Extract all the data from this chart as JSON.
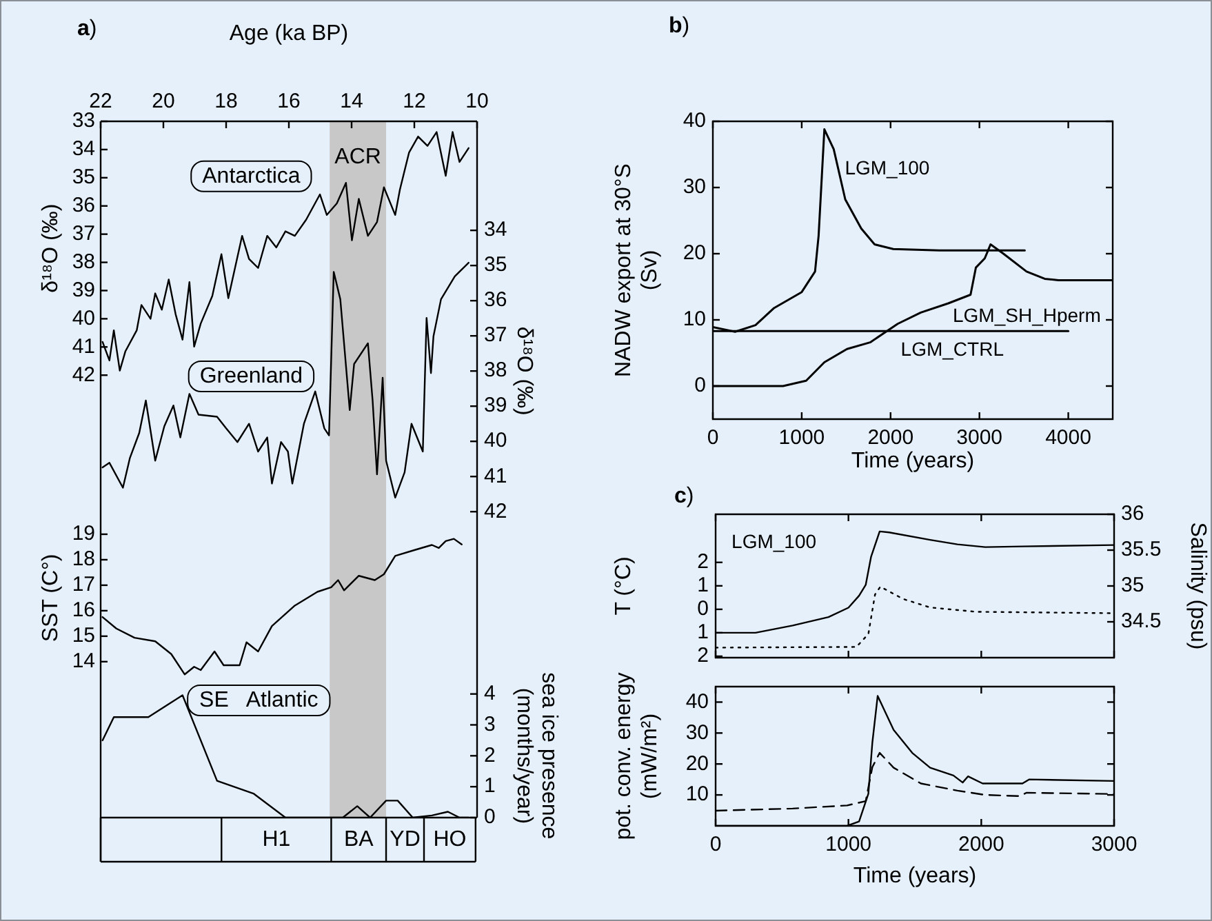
{
  "chart_data": [
    {
      "type": "line",
      "annotations": [
        "a)"
      ],
      "xlabel": "Age (ka BP)",
      "xlim": [
        22,
        10
      ],
      "xticks": [
        22,
        20,
        18,
        16,
        14,
        12,
        10
      ],
      "ylabel": "δ¹⁸O (‰)",
      "ylim": [
        52.7,
        33
      ],
      "yticks": [
        33,
        34,
        35,
        36,
        37,
        38,
        39,
        40,
        41,
        42
      ],
      "y2label": "δ¹⁸O (‰)",
      "y2lim": [
        46.7,
        30.9
      ],
      "y2ticks": [
        34,
        35,
        36,
        37,
        38,
        39,
        40,
        41,
        42
      ],
      "y3label": "SST (C°)",
      "y3lim": [
        13.4,
        35.2
      ],
      "y3ticks": [
        14,
        15,
        16,
        17,
        18,
        19
      ],
      "bands": [
        {
          "axis": "x",
          "from": 14.7,
          "to": 12.9,
          "label": "ACR",
          "color": "#c8c8c8"
        }
      ],
      "grid": false,
      "legend": false,
      "marker": "none",
      "series": [
        {
          "name": "Antarctica",
          "color": "#000000",
          "axis": "y",
          "x": [
            21.94,
            21.72,
            21.58,
            21.39,
            21.21,
            20.85,
            20.7,
            20.41,
            20.26,
            20.05,
            19.83,
            19.61,
            19.39,
            19.17,
            19.02,
            18.81,
            18.44,
            18.15,
            17.93,
            17.49,
            17.27,
            16.98,
            16.69,
            16.4,
            16.11,
            15.81,
            15.45,
            15.01,
            14.79,
            14.47,
            14.18,
            13.99,
            13.77,
            13.48,
            13.19,
            12.97,
            12.61,
            12.46,
            12.17,
            11.88,
            11.58,
            11.29,
            11.0,
            10.78,
            10.56,
            10.27
          ],
          "values": [
            40.82,
            41.48,
            40.41,
            41.84,
            41.15,
            40.41,
            39.51,
            40.0,
            39.1,
            39.68,
            38.61,
            39.84,
            40.74,
            38.7,
            40.99,
            40.17,
            39.19,
            37.71,
            39.27,
            37.06,
            37.88,
            38.2,
            37.06,
            37.47,
            36.9,
            37.06,
            36.49,
            35.59,
            36.32,
            35.91,
            35.18,
            37.22,
            35.75,
            37.06,
            36.57,
            35.34,
            36.32,
            35.42,
            34.11,
            33.54,
            33.87,
            33.38,
            34.93,
            33.38,
            34.44,
            33.95
          ]
        },
        {
          "name": "Greenland",
          "color": "#000000",
          "axis": "y2",
          "x": [
            21.94,
            21.72,
            21.29,
            21.07,
            20.77,
            20.56,
            20.26,
            19.97,
            19.68,
            19.46,
            19.17,
            18.88,
            18.29,
            18.0,
            17.64,
            17.27,
            16.98,
            16.69,
            16.54,
            16.25,
            16.03,
            15.89,
            15.52,
            15.16,
            14.87,
            14.72,
            14.57,
            14.36,
            14.06,
            13.92,
            13.48,
            13.33,
            13.19,
            13.01,
            12.9,
            12.61,
            12.31,
            12.09,
            11.73,
            11.61,
            11.47,
            11.39,
            11.15,
            10.71,
            10.27
          ],
          "values": [
            40.74,
            40.61,
            41.32,
            40.48,
            39.76,
            38.84,
            40.55,
            39.57,
            38.98,
            39.89,
            38.65,
            39.24,
            39.3,
            39.63,
            40.02,
            39.5,
            40.29,
            39.89,
            41.2,
            40.02,
            40.29,
            41.2,
            39.5,
            38.58,
            39.63,
            39.83,
            35.18,
            35.96,
            39.11,
            37.8,
            37.21,
            38.84,
            40.94,
            38.19,
            40.55,
            41.6,
            40.88,
            39.5,
            40.29,
            36.49,
            38.06,
            37.01,
            35.96,
            35.31,
            34.92
          ]
        },
        {
          "color": "#000000",
          "axis": "y3",
          "x": [
            21.94,
            21.5,
            20.92,
            20.26,
            19.75,
            19.32,
            19.02,
            18.81,
            18.37,
            18.08,
            17.57,
            17.35,
            16.98,
            16.54,
            15.81,
            15.09,
            14.65,
            14.43,
            14.24,
            13.77,
            13.26,
            12.97,
            12.61,
            12.02,
            11.44,
            11.22,
            11.0,
            10.74,
            10.49
          ],
          "values": [
            15.75,
            15.3,
            14.94,
            14.8,
            14.3,
            13.5,
            13.8,
            13.67,
            14.4,
            13.86,
            13.86,
            14.76,
            14.4,
            15.4,
            16.2,
            16.74,
            16.92,
            17.2,
            16.8,
            17.37,
            17.2,
            17.43,
            18.15,
            18.37,
            18.58,
            18.46,
            18.73,
            18.82,
            18.6
          ]
        }
      ]
    },
    {
      "type": "line",
      "annotations": [
        "H1",
        "BA",
        "YD",
        "HO"
      ],
      "ylabel": "sea ice presence (months/year)",
      "xlim": [
        22,
        10
      ],
      "ylim": [
        0,
        4.55
      ],
      "yticks": [
        0,
        1,
        2,
        3,
        4
      ],
      "tick_labels": "y",
      "bands": [
        {
          "axis": "x",
          "from": 14.7,
          "to": 12.9,
          "color": "#c8c8c8"
        }
      ],
      "grid": false,
      "legend": false,
      "marker": "none",
      "series": [
        {
          "name": "SE   Atlantic",
          "color": "#000000",
          "x": [
            21.94,
            21.58,
            20.48,
            19.39,
            18.29,
            17.13,
            16.11,
            14.28,
            13.82,
            13.41,
            12.9,
            12.53,
            12.05,
            11.44,
            10.93,
            10.56,
            10.27
          ],
          "values": [
            2.5,
            3.25,
            3.25,
            3.96,
            1.19,
            0.78,
            0,
            0,
            0.37,
            0,
            0.55,
            0.55,
            0,
            0.07,
            0.19,
            0,
            0
          ]
        }
      ]
    },
    {
      "type": "line",
      "annotations": [
        "b)"
      ],
      "xlabel": "Time (years)",
      "ylabel": "NADW export at 30°S (Sv)",
      "xlim": [
        0,
        4500
      ],
      "xticks": [
        0,
        1000,
        2000,
        3000,
        4000
      ],
      "ylim": [
        -5,
        40
      ],
      "yticks": [
        0,
        10,
        20,
        30,
        40
      ],
      "grid": false,
      "marker": "none",
      "series": [
        {
          "name": "LGM_100",
          "color": "#000000",
          "x": [
            0,
            250,
            480,
            690,
            1000,
            1150,
            1190,
            1255,
            1360,
            1490,
            1670,
            1820,
            2030,
            2550,
            3510
          ],
          "values": [
            8.9,
            8.2,
            9.2,
            11.8,
            14.2,
            17.3,
            22.7,
            38.8,
            35.8,
            28.2,
            23.8,
            21.4,
            20.7,
            20.5,
            20.5
          ]
        },
        {
          "name": "LGM_SH_Hperm",
          "color": "#000000",
          "x": [
            0,
            790,
            1050,
            1255,
            1510,
            1770,
            2080,
            2340,
            2650,
            2900,
            2960,
            3060,
            3125,
            3270,
            3530,
            3735,
            3890,
            4500
          ],
          "values": [
            0,
            0,
            0.8,
            3.6,
            5.6,
            6.6,
            9.4,
            11.1,
            12.5,
            13.8,
            17.9,
            19.3,
            21.4,
            20.0,
            17.3,
            16.2,
            16.0,
            16.0
          ]
        },
        {
          "name": "LGM_CTRL",
          "color": "#000000",
          "x": [
            0,
            2000,
            4000
          ],
          "values": [
            8.3,
            8.3,
            8.3
          ]
        }
      ]
    },
    {
      "type": "line",
      "annotations": [
        "c)",
        "LGM_100"
      ],
      "ylabel": "T (°C)",
      "y2label": "Salinity (psu)",
      "xlim": [
        0,
        3000
      ],
      "xticks": [
        0,
        1000,
        2000,
        3000
      ],
      "ylim": [
        -2.06,
        4.05
      ],
      "yticks": [
        {
          "value": -2,
          "label": "2"
        },
        {
          "value": -1,
          "label": "1"
        },
        0,
        1,
        2
      ],
      "y2lim": [
        34,
        36
      ],
      "y2ticks": [
        34.5,
        35,
        35.5,
        36
      ],
      "tick_labels": "y",
      "grid": false,
      "legend": false,
      "marker": "none",
      "series": [
        {
          "color": "#000000",
          "axis": "y",
          "line_style": "solid",
          "x": [
            0,
            300,
            580,
            850,
            1000,
            1080,
            1130,
            1170,
            1235,
            1305,
            1615,
            1820,
            2030,
            2310,
            3000
          ],
          "values": [
            -1.0,
            -1.0,
            -0.69,
            -0.33,
            0.07,
            0.58,
            1.04,
            2.23,
            3.32,
            3.28,
            2.96,
            2.77,
            2.65,
            2.68,
            2.74
          ]
        },
        {
          "color": "#000000",
          "axis": "y2",
          "line_style": "dotted",
          "x": [
            0,
            1060,
            1150,
            1200,
            1240,
            1410,
            1615,
            1960,
            3000
          ],
          "values": [
            34.14,
            34.15,
            34.33,
            34.88,
            34.99,
            34.82,
            34.7,
            34.64,
            34.62
          ]
        }
      ]
    },
    {
      "type": "line",
      "xlabel": "Time (years)",
      "ylabel": "pot. conv. energy (mW/m²)",
      "xlim": [
        0,
        3000
      ],
      "xticks": [
        0,
        1000,
        2000,
        3000
      ],
      "ylim": [
        0,
        45
      ],
      "yticks": [
        10,
        20,
        30,
        40
      ],
      "grid": false,
      "legend": false,
      "marker": "none",
      "series": [
        {
          "color": "#000000",
          "line_style": "solid",
          "x": [
            0,
            990,
            1080,
            1150,
            1180,
            1220,
            1340,
            1480,
            1615,
            1790,
            1860,
            1900,
            2010,
            2310,
            2360,
            3000
          ],
          "values": [
            0,
            0,
            1.4,
            10.4,
            26.9,
            42.0,
            31.0,
            23.6,
            18.8,
            16.3,
            14,
            16,
            13.7,
            13.7,
            15,
            14.5
          ]
        },
        {
          "color": "#000000",
          "line_style": "dashed",
          "x": [
            0,
            580,
            990,
            1130,
            1180,
            1235,
            1340,
            1545,
            1820,
            2030,
            2290,
            2340,
            3000
          ],
          "values": [
            4.9,
            5.6,
            6.6,
            8,
            19,
            23.6,
            18.8,
            13.7,
            11.4,
            10,
            9.6,
            10.7,
            10.3
          ]
        }
      ]
    }
  ]
}
